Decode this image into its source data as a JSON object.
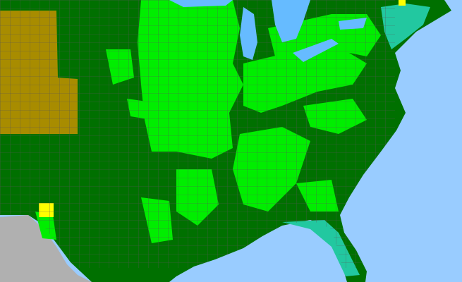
{
  "map": {
    "colors": {
      "water": "#99ccff",
      "lake": "#66bbff",
      "land_dark_green": "#007000",
      "land_bright_green": "#00ee00",
      "olive_region": "#a88c00",
      "yellow_region": "#ffff00",
      "teal_region": "#22c8a0",
      "outside_region": "#b0b0b0",
      "county_lines": "#555555"
    }
  }
}
